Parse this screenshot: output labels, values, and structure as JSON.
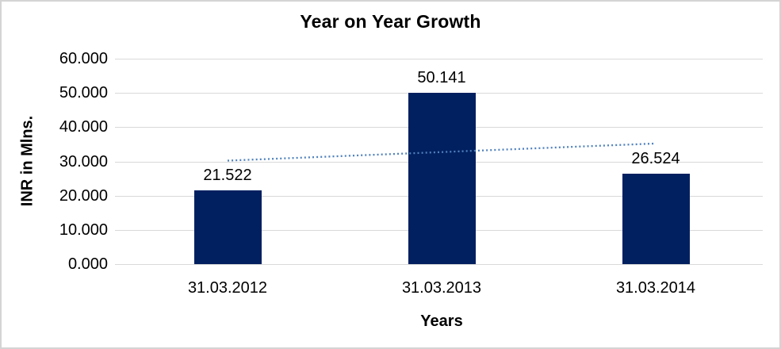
{
  "chart_data": {
    "type": "bar",
    "title": "Year on Year Growth",
    "xlabel": "Years",
    "ylabel": "INR in Mlns.",
    "categories": [
      "31.03.2012",
      "31.03.2013",
      "31.03.2014"
    ],
    "values": [
      21.522,
      50.141,
      26.524
    ],
    "data_labels": [
      "21.522",
      "50.141",
      "26.524"
    ],
    "ylim": [
      0,
      60
    ],
    "ytick_step": 10,
    "ytick_labels": [
      "0.000",
      "10.000",
      "20.000",
      "30.000",
      "40.000",
      "50.000",
      "60.000"
    ],
    "grid": true,
    "legend": "none",
    "bar_color": "#002060",
    "gridline_color": "#d9d9d9",
    "frame_border_color": "#d4d4d4",
    "trendline": {
      "type": "linear",
      "style": "dotted",
      "color": "#4f81bd",
      "fit_values": [
        30.23,
        32.73,
        35.23
      ]
    }
  }
}
